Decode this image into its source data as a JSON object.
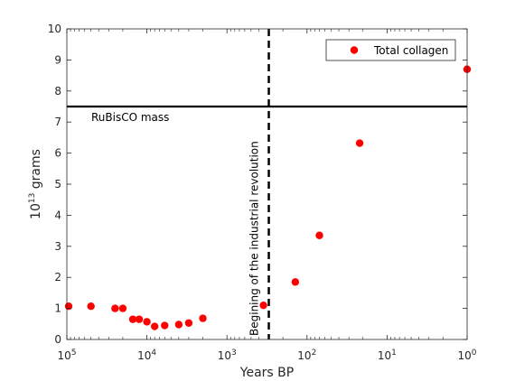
{
  "chart_data": {
    "type": "scatter",
    "xlabel": "Years BP",
    "ylabel_base": "10",
    "ylabel_exp": "13",
    "ylabel_unit": " grams",
    "x_scale": "log",
    "x_reversed": true,
    "xlim": [
      100000,
      1
    ],
    "ylim": [
      0,
      10
    ],
    "x_ticks": [
      {
        "value": 100000,
        "base": "10",
        "exp": "5"
      },
      {
        "value": 10000,
        "base": "10",
        "exp": "4"
      },
      {
        "value": 1000,
        "base": "10",
        "exp": "3"
      },
      {
        "value": 100,
        "base": "10",
        "exp": "2"
      },
      {
        "value": 10,
        "base": "10",
        "exp": "1"
      },
      {
        "value": 1,
        "base": "10",
        "exp": "0"
      }
    ],
    "y_ticks": [
      0,
      1,
      2,
      3,
      4,
      5,
      6,
      7,
      8,
      9,
      10
    ],
    "grid": false,
    "legend_position": "top-right",
    "series": [
      {
        "name": "Total collagen",
        "color": "#ff0000",
        "points": [
          {
            "x": 95000,
            "y": 1.07
          },
          {
            "x": 50000,
            "y": 1.07
          },
          {
            "x": 25000,
            "y": 1.0
          },
          {
            "x": 20000,
            "y": 1.0
          },
          {
            "x": 15000,
            "y": 0.65
          },
          {
            "x": 12500,
            "y": 0.65
          },
          {
            "x": 10000,
            "y": 0.57
          },
          {
            "x": 8000,
            "y": 0.42
          },
          {
            "x": 6000,
            "y": 0.45
          },
          {
            "x": 4000,
            "y": 0.48
          },
          {
            "x": 3000,
            "y": 0.53
          },
          {
            "x": 2000,
            "y": 0.68
          },
          {
            "x": 350,
            "y": 1.1
          },
          {
            "x": 140,
            "y": 1.85
          },
          {
            "x": 70,
            "y": 3.35
          },
          {
            "x": 22,
            "y": 6.32
          },
          {
            "x": 1,
            "y": 8.7
          }
        ]
      }
    ],
    "reference_lines": [
      {
        "orientation": "horizontal",
        "y": 7.5,
        "style": "solid",
        "color": "#000000",
        "label": "RuBisCO mass"
      },
      {
        "orientation": "vertical",
        "x": 300,
        "style": "dashed",
        "color": "#000000",
        "label": "Begining of the industrial revolution"
      }
    ]
  }
}
